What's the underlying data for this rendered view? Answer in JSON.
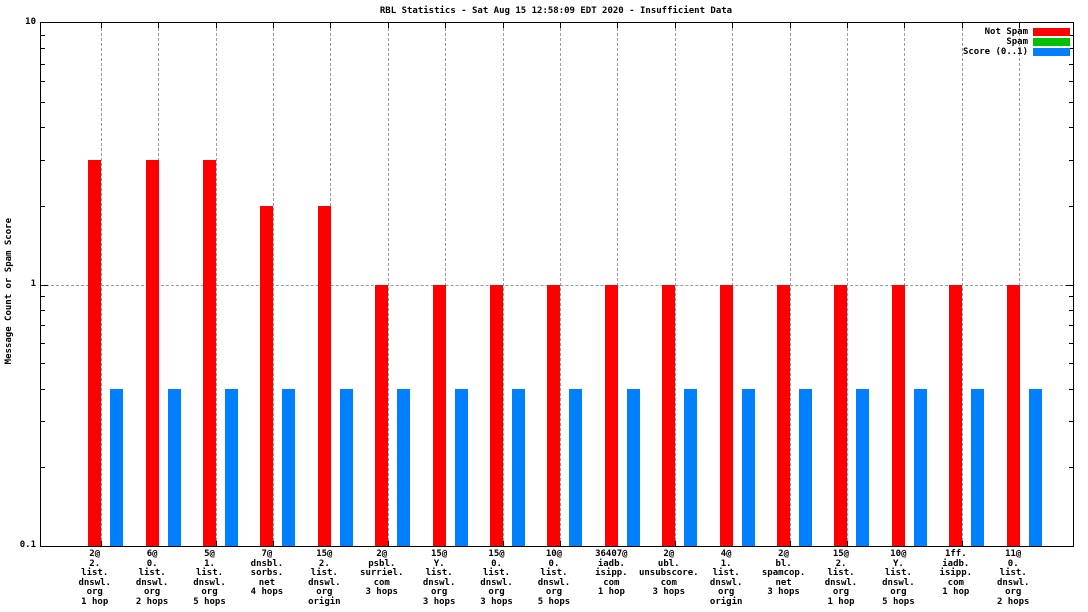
{
  "title": "RBL Statistics - Sat Aug 15 12:58:09 EDT 2020 - Insufficient Data",
  "ylabel": "Message Count or Spam Score",
  "legend": [
    {
      "name": "not-spam",
      "label": "Not Spam",
      "color": "#ff0000"
    },
    {
      "name": "spam",
      "label": "Spam",
      "color": "#00c000"
    },
    {
      "name": "score",
      "label": "Score (0..1)",
      "color": "#0080ff"
    }
  ],
  "chart_data": {
    "type": "bar",
    "scale": "log",
    "ylim": [
      0.1,
      10
    ],
    "yticks": [
      {
        "value": 10,
        "label": "10"
      },
      {
        "value": 1,
        "label": "1"
      },
      {
        "value": 0.1,
        "label": "0.1"
      }
    ],
    "grid": {
      "horizontal_at": [
        1
      ],
      "vertical": "per-category",
      "color": "#9a9a9a"
    },
    "legend_position": "top-right-inside",
    "categories": [
      [
        "2@",
        "2.",
        "list.",
        "dnswl.",
        "org",
        "1 hop"
      ],
      [
        "6@",
        "0.",
        "list.",
        "dnswl.",
        "org",
        "2 hops"
      ],
      [
        "5@",
        "1.",
        "list.",
        "dnswl.",
        "org",
        "5 hops"
      ],
      [
        "7@",
        "dnsbl.",
        "sorbs.",
        "net",
        "4 hops"
      ],
      [
        "15@",
        "2.",
        "list.",
        "dnswl.",
        "org",
        "origin"
      ],
      [
        "2@",
        "psbl.",
        "surriel.",
        "com",
        "3 hops"
      ],
      [
        "15@",
        "Y.",
        "list.",
        "dnswl.",
        "org",
        "3 hops"
      ],
      [
        "15@",
        "0.",
        "list.",
        "dnswl.",
        "org",
        "3 hops"
      ],
      [
        "10@",
        "0.",
        "list.",
        "dnswl.",
        "org",
        "5 hops"
      ],
      [
        "36407@",
        "iadb.",
        "isipp.",
        "com",
        "1 hop"
      ],
      [
        "2@",
        "ubl.",
        "unsubscore.",
        "com",
        "3 hops"
      ],
      [
        "4@",
        "1.",
        "list.",
        "dnswl.",
        "org",
        "origin"
      ],
      [
        "2@",
        "bl.",
        "spamcop.",
        "net",
        "3 hops"
      ],
      [
        "15@",
        "2.",
        "list.",
        "dnswl.",
        "org",
        "1 hop"
      ],
      [
        "10@",
        "Y.",
        "list.",
        "dnswl.",
        "org",
        "5 hops"
      ],
      [
        "1ff.",
        "iadb.",
        "isipp.",
        "com",
        "1 hop"
      ],
      [
        "11@",
        "0.",
        "list.",
        "dnswl.",
        "org",
        "2 hops"
      ]
    ],
    "series": [
      {
        "name": "Not Spam",
        "color": "#ff0000",
        "values": [
          3,
          3,
          3,
          2,
          2,
          1,
          1,
          1,
          1,
          1,
          1,
          1,
          1,
          1,
          1,
          1,
          1
        ]
      },
      {
        "name": "Spam",
        "color": "#00c000",
        "values": [
          0,
          0,
          0,
          0,
          0,
          0,
          0,
          0,
          0,
          0,
          0,
          0,
          0,
          0,
          0,
          0,
          0
        ]
      },
      {
        "name": "Score (0..1)",
        "color": "#0080ff",
        "values": [
          0.4,
          0.4,
          0.4,
          0.4,
          0.4,
          0.4,
          0.4,
          0.4,
          0.4,
          0.4,
          0.4,
          0.4,
          0.4,
          0.4,
          0.4,
          0.4,
          0.4
        ]
      }
    ]
  }
}
